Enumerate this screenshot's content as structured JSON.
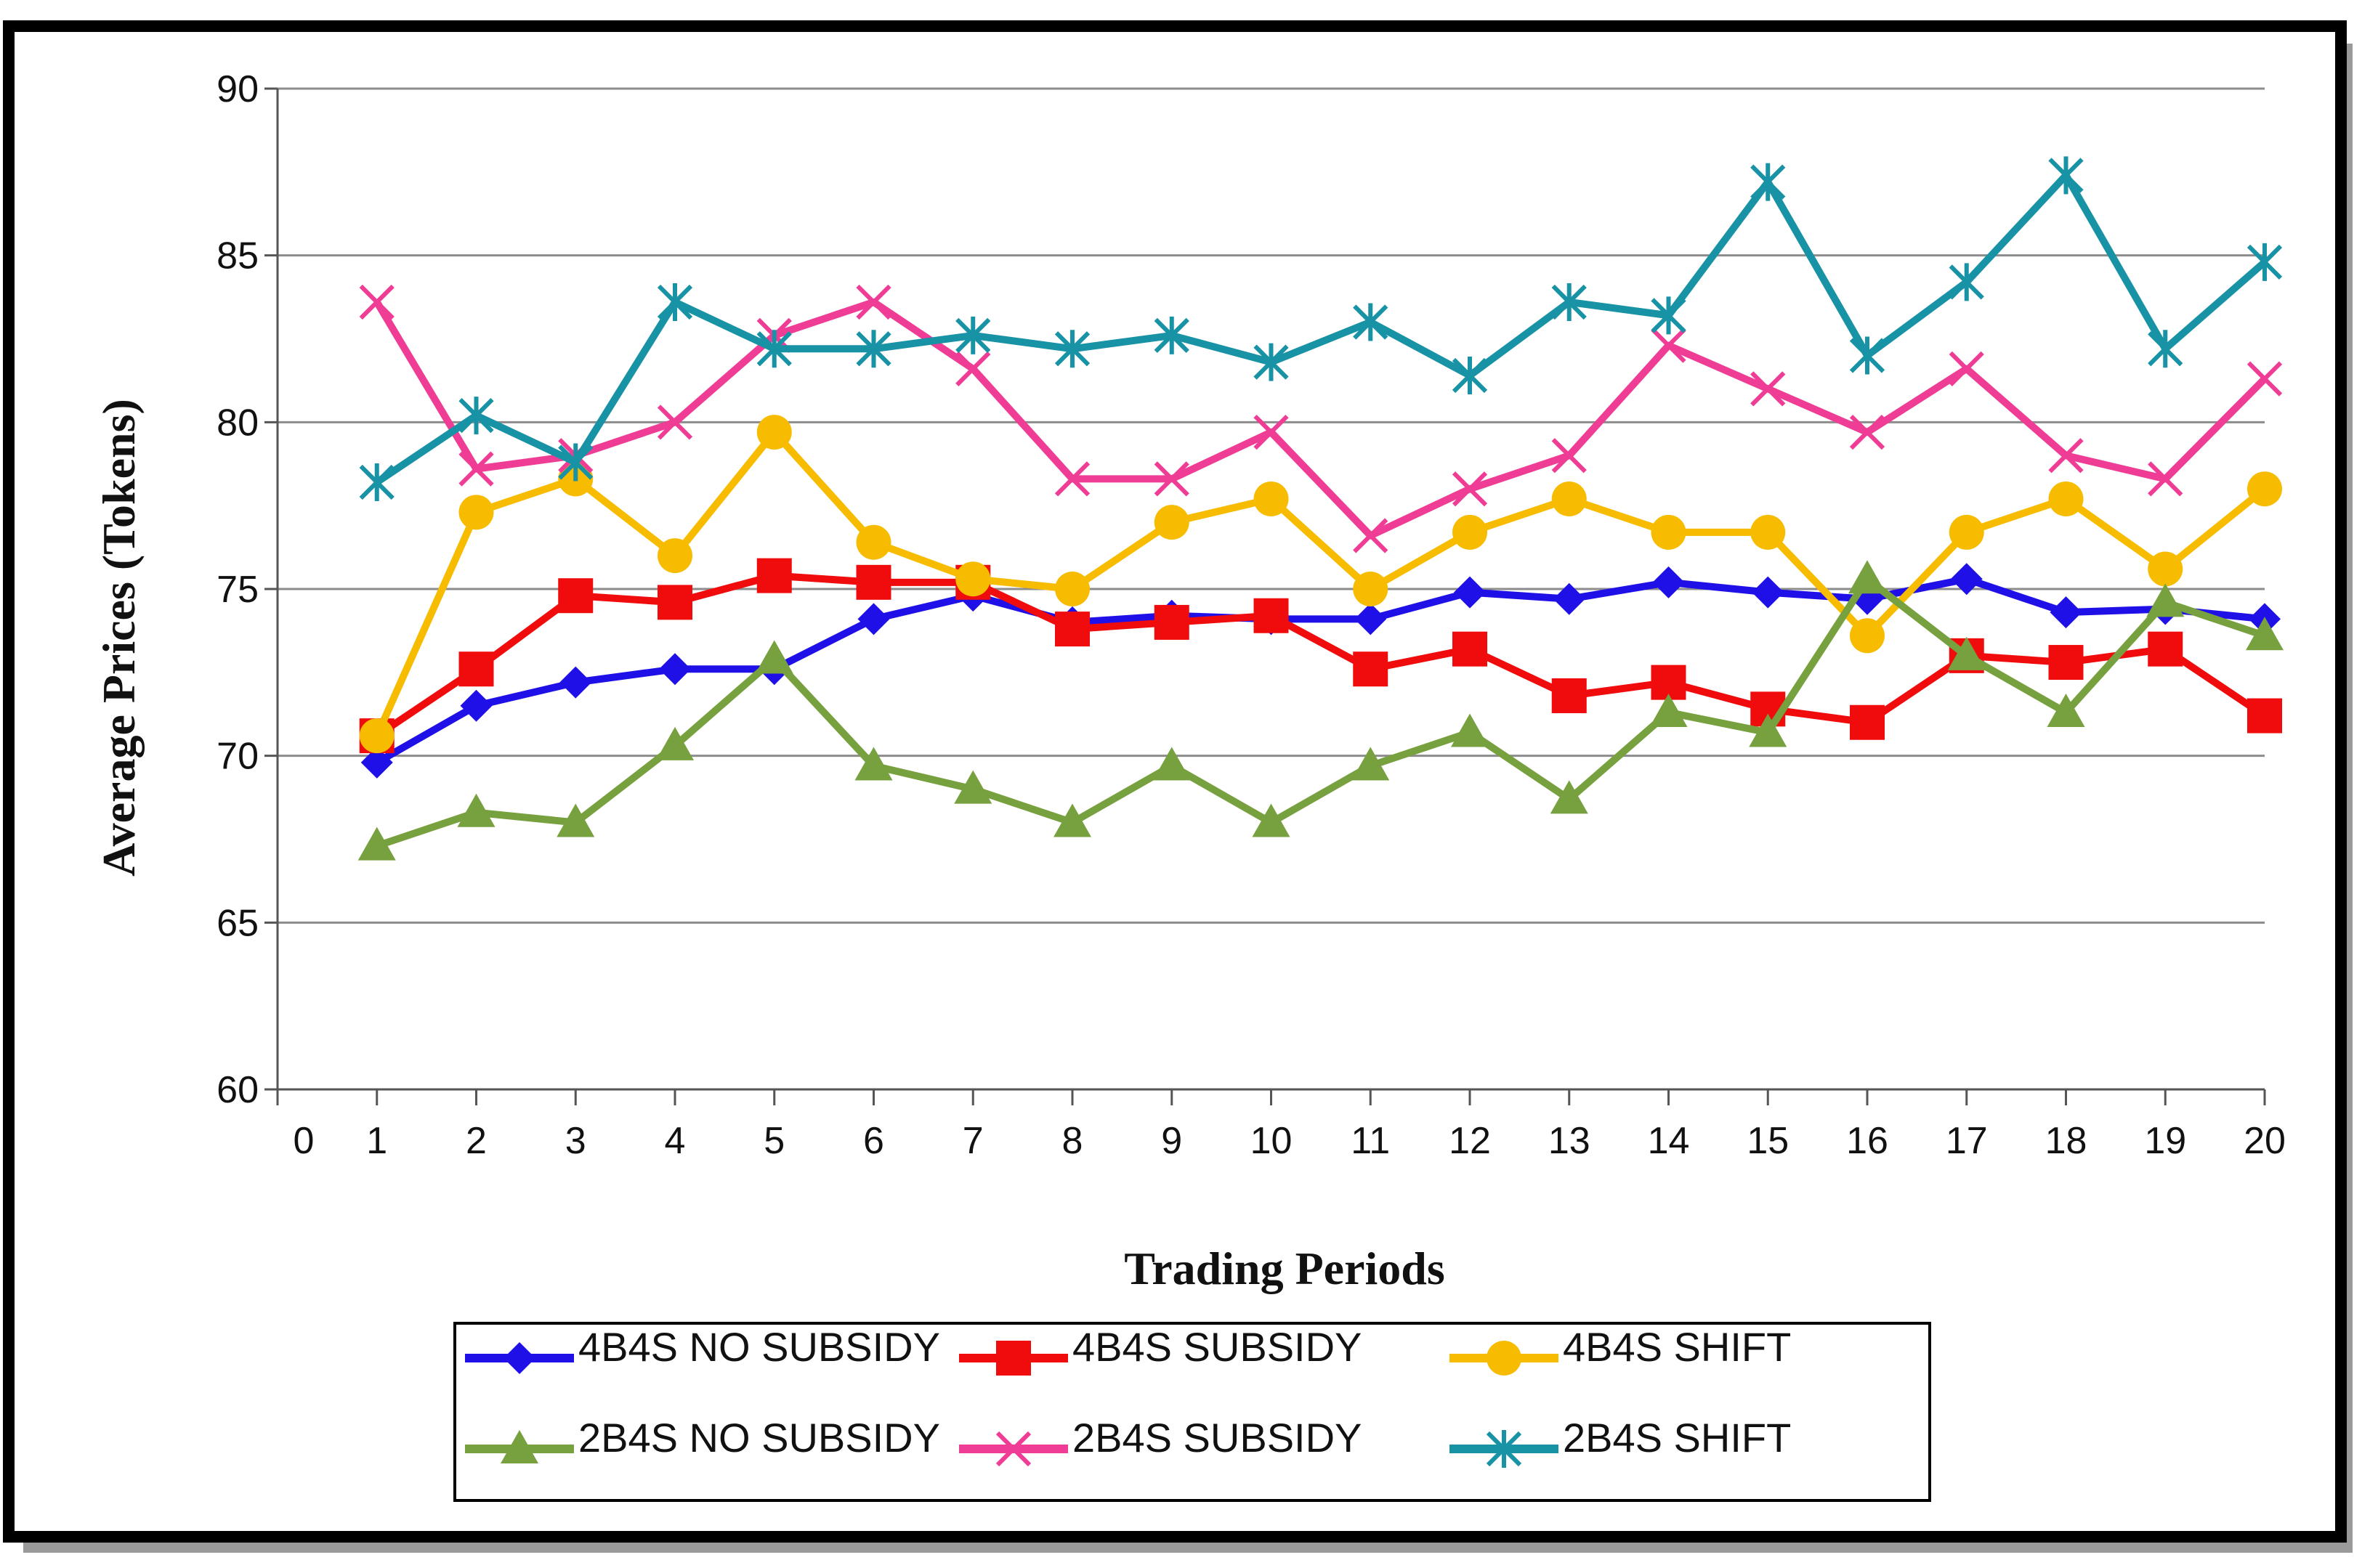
{
  "chart_data": {
    "type": "line",
    "title": "",
    "xlabel": "Trading Periods",
    "ylabel": "Average Prices (Tokens)",
    "xlim": [
      0,
      20
    ],
    "ylim": [
      60,
      90
    ],
    "xticks": [
      "0",
      "1",
      "2",
      "3",
      "4",
      "5",
      "6",
      "7",
      "8",
      "9",
      "10",
      "11",
      "12",
      "13",
      "14",
      "15",
      "16",
      "17",
      "18",
      "19",
      "20"
    ],
    "yticks": [
      "60",
      "65",
      "70",
      "75",
      "80",
      "85",
      "90"
    ],
    "x": [
      1,
      2,
      3,
      4,
      5,
      6,
      7,
      8,
      9,
      10,
      11,
      12,
      13,
      14,
      15,
      16,
      17,
      18,
      19,
      20
    ],
    "grid": "horizontal",
    "legend_position": "bottom",
    "series": [
      {
        "name": "4B4S NO SUBSIDY",
        "color": "#1f10e8",
        "marker": "diamond",
        "values": [
          69.8,
          71.5,
          72.2,
          72.6,
          72.6,
          74.1,
          74.8,
          74.0,
          74.2,
          74.1,
          74.1,
          74.9,
          74.7,
          75.2,
          74.9,
          74.7,
          75.3,
          74.3,
          74.4,
          74.1
        ]
      },
      {
        "name": "4B4S SUBSIDY",
        "color": "#f00c0c",
        "marker": "square",
        "values": [
          70.6,
          72.6,
          74.8,
          74.6,
          75.4,
          75.2,
          75.2,
          73.8,
          74.0,
          74.2,
          72.6,
          73.2,
          71.8,
          72.2,
          71.4,
          71.0,
          73.0,
          72.8,
          73.2,
          71.2
        ]
      },
      {
        "name": "4B4S SHIFT",
        "color": "#f7bc00",
        "marker": "circle",
        "values": [
          70.6,
          77.3,
          78.3,
          76.0,
          79.7,
          76.4,
          75.3,
          75.0,
          77.0,
          77.7,
          75.0,
          76.7,
          77.7,
          76.7,
          76.7,
          73.6,
          76.7,
          77.7,
          75.6,
          78.0
        ]
      },
      {
        "name": "2B4S NO SUBSIDY",
        "color": "#77a03e",
        "marker": "triangle",
        "values": [
          67.3,
          68.3,
          68.0,
          70.3,
          72.9,
          69.7,
          69.0,
          68.0,
          69.7,
          68.0,
          69.7,
          70.7,
          68.7,
          71.3,
          70.7,
          75.3,
          73.0,
          71.3,
          74.6,
          73.6
        ]
      },
      {
        "name": "2B4S SUBSIDY",
        "color": "#ef3d96",
        "marker": "x",
        "values": [
          83.6,
          78.6,
          79.0,
          80.0,
          82.6,
          83.6,
          81.6,
          78.3,
          78.3,
          79.7,
          76.6,
          78.0,
          79.0,
          82.3,
          81.0,
          79.7,
          81.6,
          79.0,
          78.3,
          81.3
        ]
      },
      {
        "name": "2B4S SHIFT",
        "color": "#1892a5",
        "marker": "asterisk",
        "values": [
          78.2,
          80.2,
          78.8,
          83.6,
          82.2,
          82.2,
          82.6,
          82.2,
          82.6,
          81.8,
          83.0,
          81.4,
          83.6,
          83.2,
          87.2,
          82.0,
          84.2,
          87.4,
          82.2,
          84.8
        ]
      }
    ]
  }
}
